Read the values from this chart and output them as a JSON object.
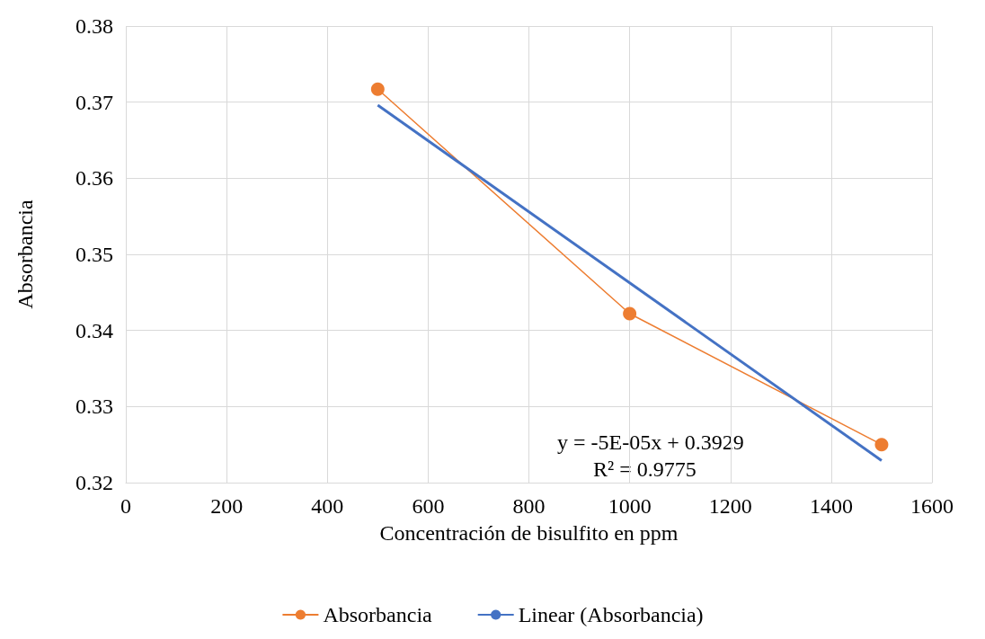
{
  "chart_data": {
    "type": "line",
    "xlabel": "Concentración de bisulfito en ppm",
    "ylabel": "Absorbancia",
    "x": [
      500,
      1000,
      1500
    ],
    "series": [
      {
        "name": "Absorbancia",
        "color": "#ed7d31",
        "values": [
          0.3717,
          0.3422,
          0.325
        ],
        "marker": "circle"
      },
      {
        "name": "Linear (Absorbancia)",
        "color": "#4472c4",
        "x": [
          500,
          1500
        ],
        "values": [
          0.3696,
          0.3229
        ],
        "marker": "none"
      }
    ],
    "xlim": [
      0,
      1600
    ],
    "xticks": [
      0,
      200,
      400,
      600,
      800,
      1000,
      1200,
      1400,
      1600
    ],
    "ylim": [
      0.32,
      0.38
    ],
    "yticks": [
      0.32,
      0.33,
      0.34,
      0.35,
      0.36,
      0.37,
      0.38
    ],
    "grid": true,
    "legend": "bottom",
    "annotations": [
      "y = -5E-05x + 0.3929",
      "R² = 0.9775"
    ]
  }
}
